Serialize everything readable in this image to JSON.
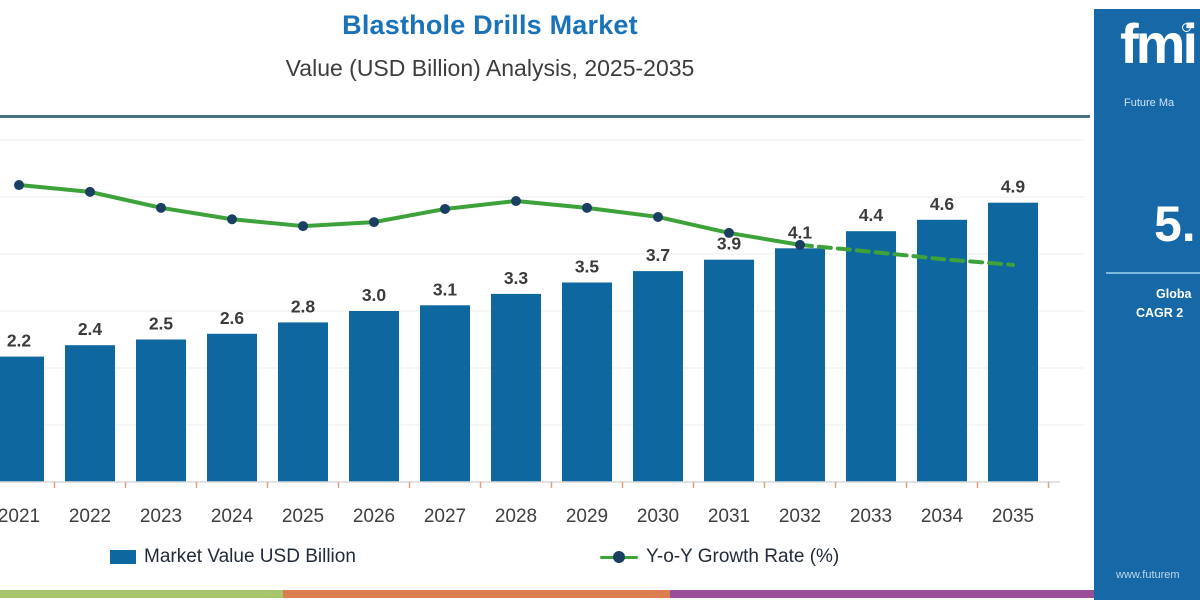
{
  "header": {
    "title": "Blasthole Drills Market",
    "subtitle": "Value (USD Billion) Analysis, 2025-2035"
  },
  "legend": {
    "bar_label": "Market Value USD Billion",
    "line_label": "Y-o-Y Growth Rate (%)"
  },
  "chart_data": {
    "type": "bar",
    "combo": "bar+line",
    "title": "Blasthole Drills Market",
    "subtitle": "Value (USD Billion) Analysis, 2025-2035",
    "xlabel": "",
    "ylabel": "",
    "ylim": [
      0,
      6.4
    ],
    "grid": true,
    "legend_position": "bottom",
    "categories": [
      "2021",
      "2022",
      "2023",
      "2024",
      "2025",
      "2026",
      "2027",
      "2028",
      "2029",
      "2030",
      "2031",
      "2032",
      "2033",
      "2034",
      "2035"
    ],
    "series": [
      {
        "name": "Market Value USD Billion",
        "kind": "bar",
        "values": [
          2.2,
          2.4,
          2.5,
          2.6,
          2.8,
          3.0,
          3.1,
          3.3,
          3.5,
          3.7,
          3.9,
          4.1,
          4.4,
          4.6,
          4.9
        ],
        "data_labels_shown": true
      },
      {
        "name": "Y-o-Y Growth Rate (%)",
        "kind": "line",
        "values_unlabeled_estimated": [
          5.21,
          5.09,
          4.81,
          4.61,
          4.49,
          4.56,
          4.79,
          4.93,
          4.81,
          4.65,
          4.37,
          4.16,
          4.04,
          3.91,
          3.81
        ],
        "solid_until_category": "2032",
        "dashed_after_category": "2032",
        "markers_on_categories": [
          "2021",
          "2022",
          "2023",
          "2024",
          "2025",
          "2026",
          "2027",
          "2028",
          "2029",
          "2030",
          "2031",
          "2032"
        ]
      }
    ]
  },
  "sidebar": {
    "logo_text": "fmi",
    "logo_subtext": "Future Ma",
    "stat_value": "5.",
    "stat_caption_line1": "Globa",
    "stat_caption_line2": "CAGR 2",
    "website": "www.futurem"
  },
  "colors": {
    "bar": "#0f679f",
    "line": "#3ea23a",
    "marker": "#1b3e63",
    "title": "#1a73b8",
    "gridline": "#efecec",
    "axis": "#d8d8d8",
    "tick": "#e0a183",
    "top_rule": "#46717f",
    "sidebar_bg": "#1768a6",
    "strip_green": "#a8c76c",
    "strip_orange": "#dc7f50",
    "strip_purple": "#9b4f9b"
  }
}
